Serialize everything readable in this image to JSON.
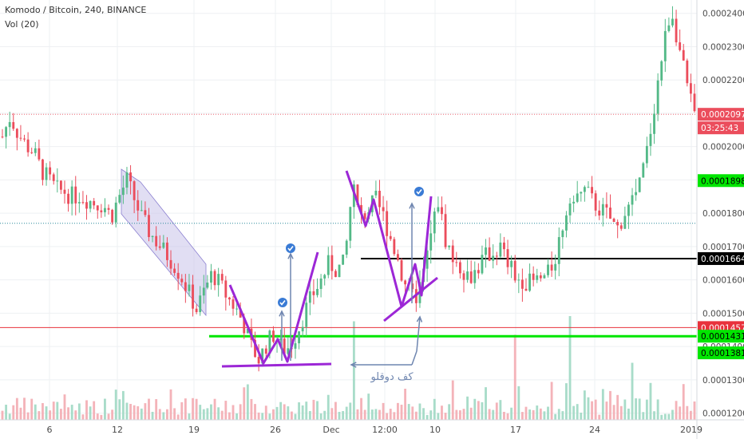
{
  "header": {
    "symbol_line": "Komodo / Bitcoin, 240, BINANCE",
    "volume_line": "Vol (20)"
  },
  "colors": {
    "bull": "#53b987",
    "bear": "#eb4d5c",
    "vol_bull": "#a8dcc9",
    "vol_bear": "#f4b3b9",
    "grid": "#eef0f3",
    "axis_text": "#4a4a4a",
    "channel_fill": "#c9c2ea",
    "purple": "#9c27d6",
    "arrow": "#6f86b0",
    "green_level": "#00e600",
    "red_level": "#e8323c",
    "black_level": "#000000",
    "check": "#3a7bd5"
  },
  "chart_data": {
    "type": "candlestick",
    "title": "Komodo / Bitcoin, 240, BINANCE",
    "indicator": "Vol (20)",
    "ylim": [
      0.000118,
      0.000244
    ],
    "y_ticks": [
      "0.0001200",
      "0.0001300",
      "0.0001400",
      "0.0001500",
      "0.0001600",
      "0.0001700",
      "0.0001800",
      "0.0001900",
      "0.0002000",
      "0.0002100",
      "0.0002200",
      "0.0002300",
      "0.0002400"
    ],
    "x_ticks": [
      "6",
      "12",
      "19",
      "26",
      "Dec",
      "12:00",
      "10",
      "17",
      "24",
      "2019"
    ],
    "price_path": [
      [
        0,
        0.000203
      ],
      [
        1,
        0.000209
      ],
      [
        2,
        0.000204
      ],
      [
        3,
        0.0002005
      ],
      [
        4,
        0.0001985
      ],
      [
        5,
        0.000193
      ],
      [
        6,
        0.00019
      ],
      [
        7,
        0.000187
      ],
      [
        8,
        0.0001865
      ],
      [
        9,
        0.000185
      ],
      [
        10,
        0.0001855
      ],
      [
        11,
        0.000184
      ],
      [
        12,
        0.000183
      ],
      [
        13,
        0.0001825
      ],
      [
        14,
        0.000179
      ],
      [
        15,
        0.000185
      ],
      [
        16,
        0.00019
      ],
      [
        17,
        0.000184
      ],
      [
        18,
        0.000178
      ],
      [
        19,
        0.000174
      ],
      [
        20,
        0.000171
      ],
      [
        21,
        0.000168
      ],
      [
        22,
        0.000165
      ],
      [
        23,
        0.000161
      ],
      [
        24,
        0.000156
      ],
      [
        25,
        0.000151
      ],
      [
        26,
        0.000157
      ],
      [
        27,
        0.000162
      ],
      [
        28,
        0.0001585
      ],
      [
        29,
        0.0001545
      ],
      [
        30,
        0.0001515
      ],
      [
        31,
        0.000147
      ],
      [
        32,
        0.00014
      ],
      [
        33,
        0.000136
      ],
      [
        34,
        0.000141
      ],
      [
        35,
        0.000144
      ],
      [
        36,
        0.000139
      ],
      [
        37,
        0.00014
      ],
      [
        38,
        0.000145
      ],
      [
        39,
        0.000151
      ],
      [
        40,
        0.000156
      ],
      [
        41,
        0.00016
      ],
      [
        42,
        0.000165
      ],
      [
        43,
        0.000163
      ],
      [
        44,
        0.000165
      ],
      [
        45,
        0.000188
      ],
      [
        46,
        0.000178
      ],
      [
        47,
        0.000181
      ],
      [
        48,
        0.000184
      ],
      [
        49,
        0.000179
      ],
      [
        50,
        0.000172
      ],
      [
        51,
        0.000165
      ],
      [
        52,
        0.000157
      ],
      [
        53,
        0.000154
      ],
      [
        54,
        0.00016
      ],
      [
        55,
        0.000172
      ],
      [
        56,
        0.000184
      ],
      [
        57,
        0.000172
      ],
      [
        58,
        0.000166
      ],
      [
        59,
        0.000164
      ],
      [
        60,
        0.000161
      ],
      [
        61,
        0.000163
      ],
      [
        62,
        0.000167
      ],
      [
        63,
        0.000168
      ],
      [
        64,
        0.00017
      ],
      [
        65,
        0.000165
      ],
      [
        66,
        0.000161
      ],
      [
        67,
        0.00016
      ],
      [
        68,
        0.000159
      ],
      [
        69,
        0.00016
      ],
      [
        70,
        0.000161
      ],
      [
        71,
        0.000166
      ],
      [
        72,
        0.000176
      ],
      [
        73,
        0.000186
      ],
      [
        74,
        0.000185
      ],
      [
        75,
        0.000187
      ],
      [
        76,
        0.000183
      ],
      [
        77,
        0.000181
      ],
      [
        78,
        0.000179
      ],
      [
        79,
        0.000175
      ],
      [
        80,
        0.00018
      ],
      [
        81,
        0.000183
      ],
      [
        82,
        0.000189
      ],
      [
        83,
        0.0002
      ],
      [
        84,
        0.000215
      ],
      [
        85,
        0.00023
      ],
      [
        86,
        0.000242
      ],
      [
        87,
        0.00023
      ],
      [
        88,
        0.000218
      ],
      [
        89,
        0.0002097
      ]
    ],
    "volume_spikes": [
      [
        45,
        0.95
      ],
      [
        66,
        0.82
      ],
      [
        73,
        1.0
      ],
      [
        81,
        0.55
      ],
      [
        58,
        0.38
      ],
      [
        52,
        0.3
      ]
    ],
    "last_price": "0.0002097",
    "countdown": "03:25:43",
    "price_labels": [
      {
        "value": 0.0001898,
        "text": "0.0001898",
        "kind": "green"
      },
      {
        "value": 0.0001664,
        "text": "0.0001664",
        "kind": "black"
      },
      {
        "value": 0.0001457,
        "text": "0.0001457",
        "kind": "red"
      },
      {
        "value": 0.0001431,
        "text": "0.0001431",
        "kind": "green"
      },
      {
        "value": 0.0001381,
        "text": "0.0001381",
        "kind": "green"
      }
    ],
    "dotted_level": 0.000177,
    "annotation_text": "كف دوقلو"
  }
}
